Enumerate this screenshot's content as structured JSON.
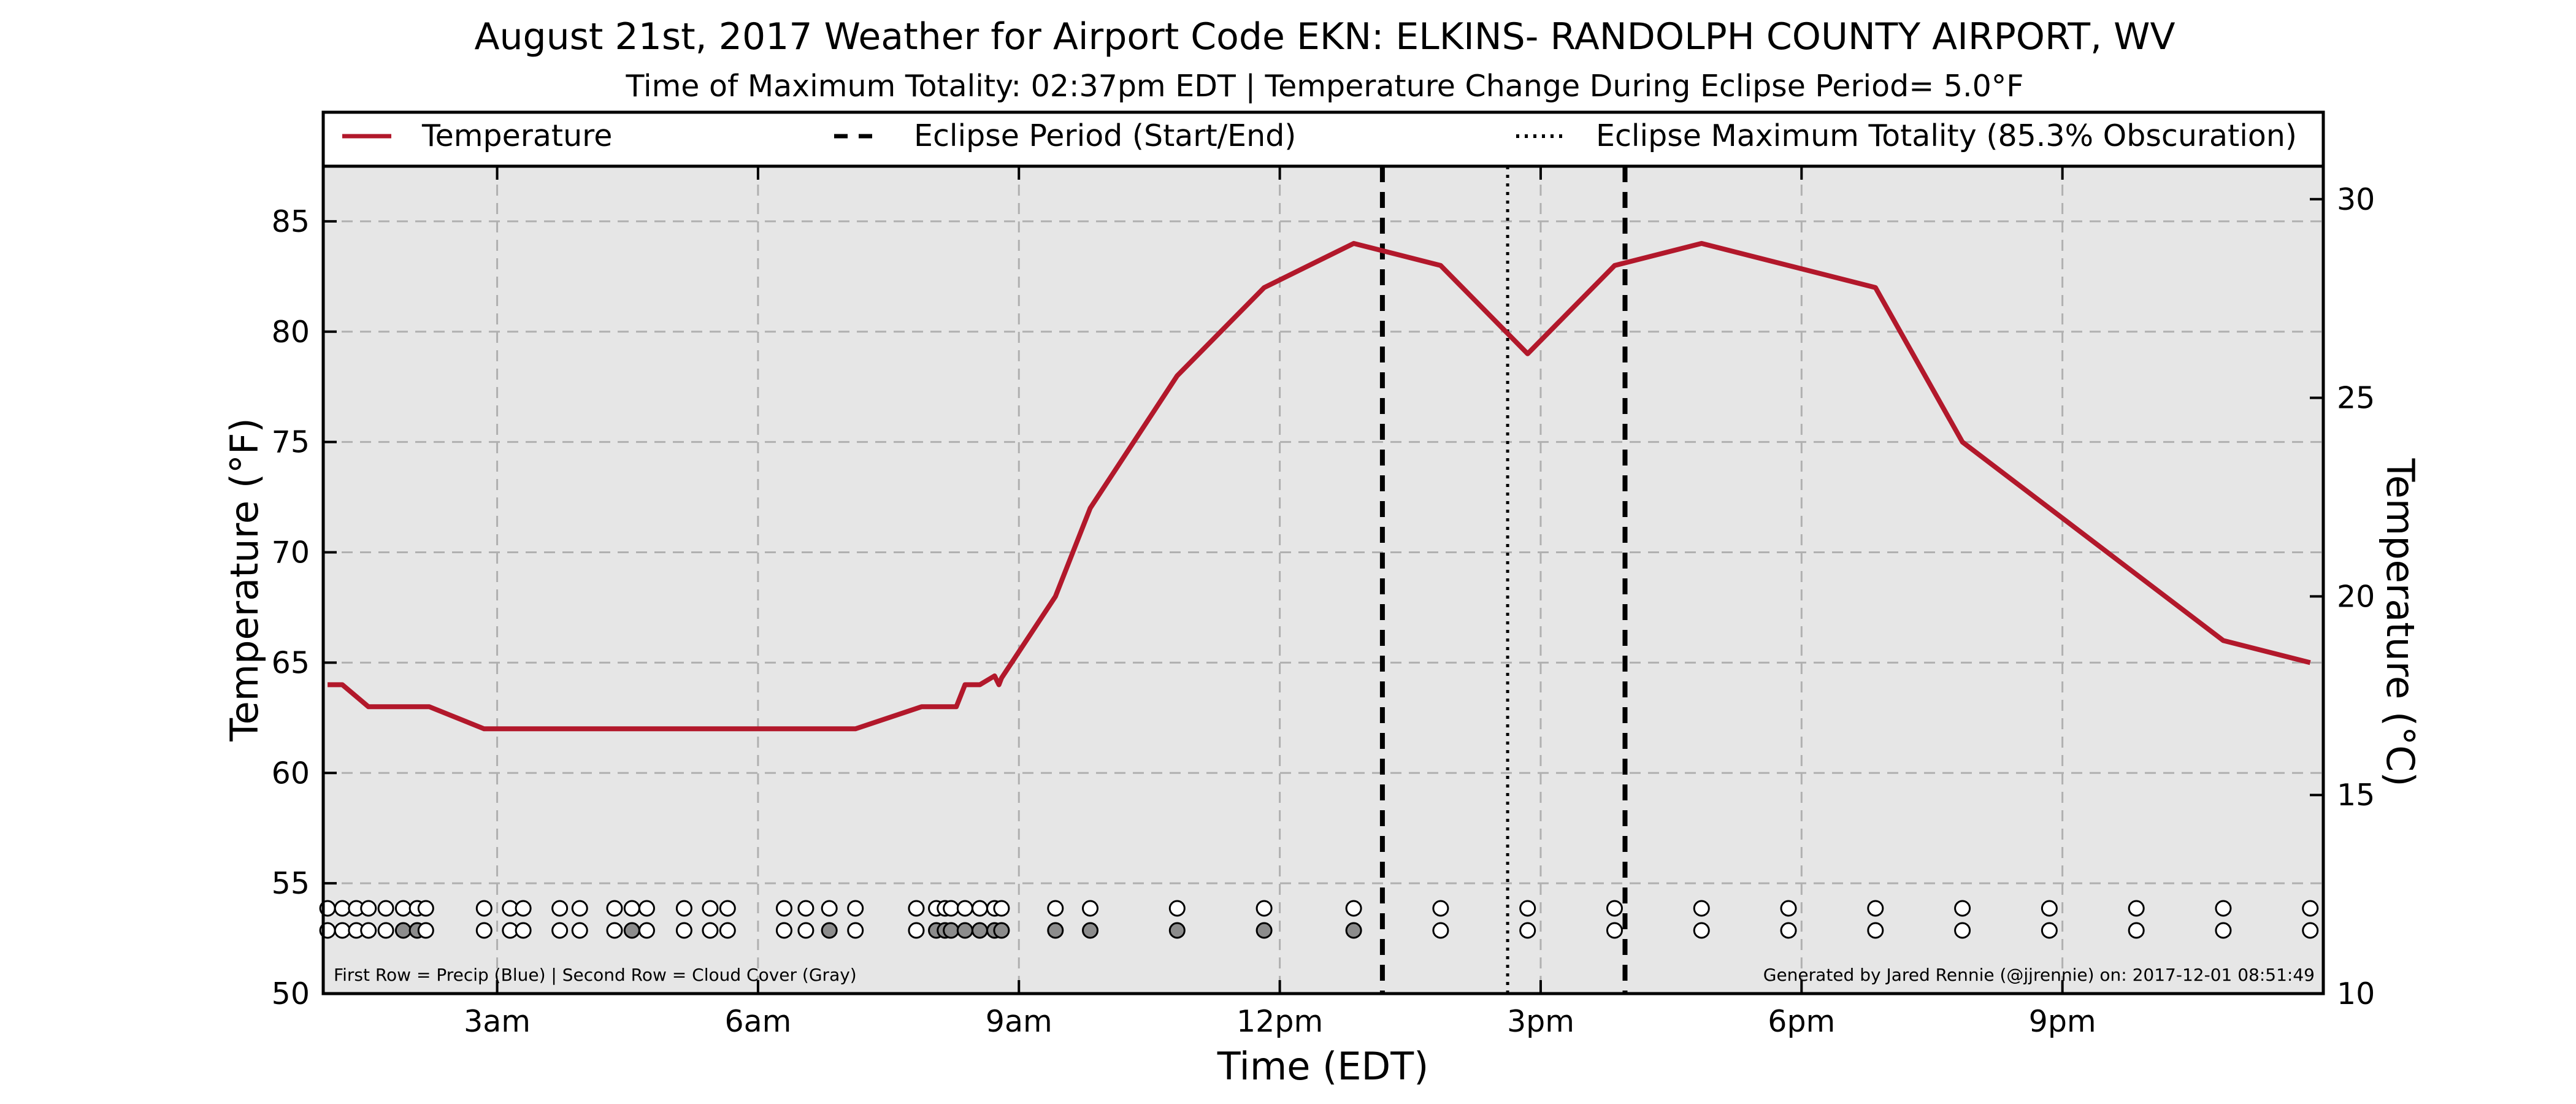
{
  "chart_data": {
    "type": "line",
    "title": "August 21st, 2017 Weather for Airport Code EKN: ELKINS- RANDOLPH COUNTY AIRPORT, WV",
    "subtitle": "Time of Maximum Totality: 02:37pm EDT | Temperature Change During Eclipse Period= 5.0°F",
    "xlabel": "Time (EDT)",
    "ylabel": "Temperature (°F)",
    "ylabel_right": "Temperature (°C)",
    "x_units": "hours after midnight (EDT)",
    "xlim": [
      1.0,
      24.0
    ],
    "ylim": [
      50,
      87.5
    ],
    "ylim_right": [
      10,
      30.83
    ],
    "grid": true,
    "x_ticks": [
      {
        "value": 3,
        "label": "3am"
      },
      {
        "value": 6,
        "label": "6am"
      },
      {
        "value": 9,
        "label": "9am"
      },
      {
        "value": 12,
        "label": "12pm"
      },
      {
        "value": 15,
        "label": "3pm"
      },
      {
        "value": 18,
        "label": "6pm"
      },
      {
        "value": 21,
        "label": "9pm"
      }
    ],
    "y_ticks": [
      50,
      55,
      60,
      65,
      70,
      75,
      80,
      85
    ],
    "y_ticks_right": [
      10,
      15,
      20,
      25,
      30
    ],
    "legend": {
      "placement": "top",
      "entries": [
        {
          "label": "Temperature",
          "style": "solid"
        },
        {
          "label": "Eclipse Period (Start/End)",
          "style": "dashed"
        },
        {
          "label": "Eclipse Maximum Totality (85.3% Obscuration)",
          "style": "dotted"
        }
      ]
    },
    "series": [
      {
        "name": "Temperature",
        "color": "#b2182b",
        "x": [
          1.05,
          1.22,
          1.52,
          2.22,
          2.85,
          7.12,
          7.88,
          8.28,
          8.38,
          8.55,
          8.72,
          8.77,
          8.8,
          9.42,
          9.82,
          10.82,
          11.82,
          12.85,
          13.85,
          14.85,
          15.85,
          16.85,
          17.85,
          18.85,
          19.85,
          20.85,
          21.85,
          22.85,
          23.85
        ],
        "values": [
          64,
          64,
          63,
          63,
          62,
          62,
          63,
          63,
          64,
          64,
          64.4,
          64,
          64.3,
          68,
          72,
          78,
          82,
          84,
          83,
          79,
          83,
          84,
          83,
          82,
          75,
          72,
          69,
          66,
          65
        ]
      }
    ],
    "eclipse": {
      "start": 13.18,
      "end": 15.97,
      "max_totality": 14.62,
      "max_totality_label": "02:37pm",
      "obscuration_percent": 85.3,
      "temperature_change_f": 5.0
    },
    "observation_markers": {
      "rows_label": "First Row = Precip (Blue) | Second Row = Cloud Cover (Gray)",
      "x": [
        1.05,
        1.22,
        1.38,
        1.52,
        1.72,
        1.92,
        2.08,
        2.18,
        2.85,
        3.15,
        3.3,
        3.72,
        3.95,
        4.35,
        4.55,
        4.72,
        5.15,
        5.45,
        5.65,
        6.3,
        6.55,
        6.82,
        7.12,
        7.82,
        8.05,
        8.15,
        8.22,
        8.38,
        8.55,
        8.72,
        8.8,
        9.42,
        9.82,
        10.82,
        11.82,
        12.85,
        13.85,
        14.85,
        15.85,
        16.85,
        17.85,
        18.85,
        19.85,
        20.85,
        21.85,
        22.85,
        23.85
      ],
      "precip_filled": [
        false,
        false,
        false,
        false,
        false,
        false,
        false,
        false,
        false,
        false,
        false,
        false,
        false,
        false,
        false,
        false,
        false,
        false,
        false,
        false,
        false,
        false,
        false,
        false,
        false,
        false,
        false,
        false,
        false,
        false,
        false,
        false,
        false,
        false,
        false,
        false,
        false,
        false,
        false,
        false,
        false,
        false,
        false,
        false,
        false,
        false,
        false
      ],
      "cloud_filled": [
        false,
        false,
        false,
        false,
        false,
        true,
        true,
        false,
        false,
        false,
        false,
        false,
        false,
        false,
        true,
        false,
        false,
        false,
        false,
        false,
        false,
        true,
        false,
        false,
        true,
        true,
        true,
        true,
        true,
        true,
        true,
        true,
        true,
        true,
        true,
        true,
        false,
        false,
        false,
        false,
        false,
        false,
        false,
        false,
        false,
        false,
        false
      ]
    },
    "footer_left": "First Row = Precip (Blue) | Second Row = Cloud Cover (Gray)",
    "footer_right": "Generated by Jared Rennie (@jjrennie) on: 2017-12-01 08:51:49",
    "colors": {
      "temperature": "#b2182b",
      "plot_background": "#e6e6e6",
      "cloud_fill": "#8c8c8c",
      "grid": "#b0b0b0"
    }
  }
}
